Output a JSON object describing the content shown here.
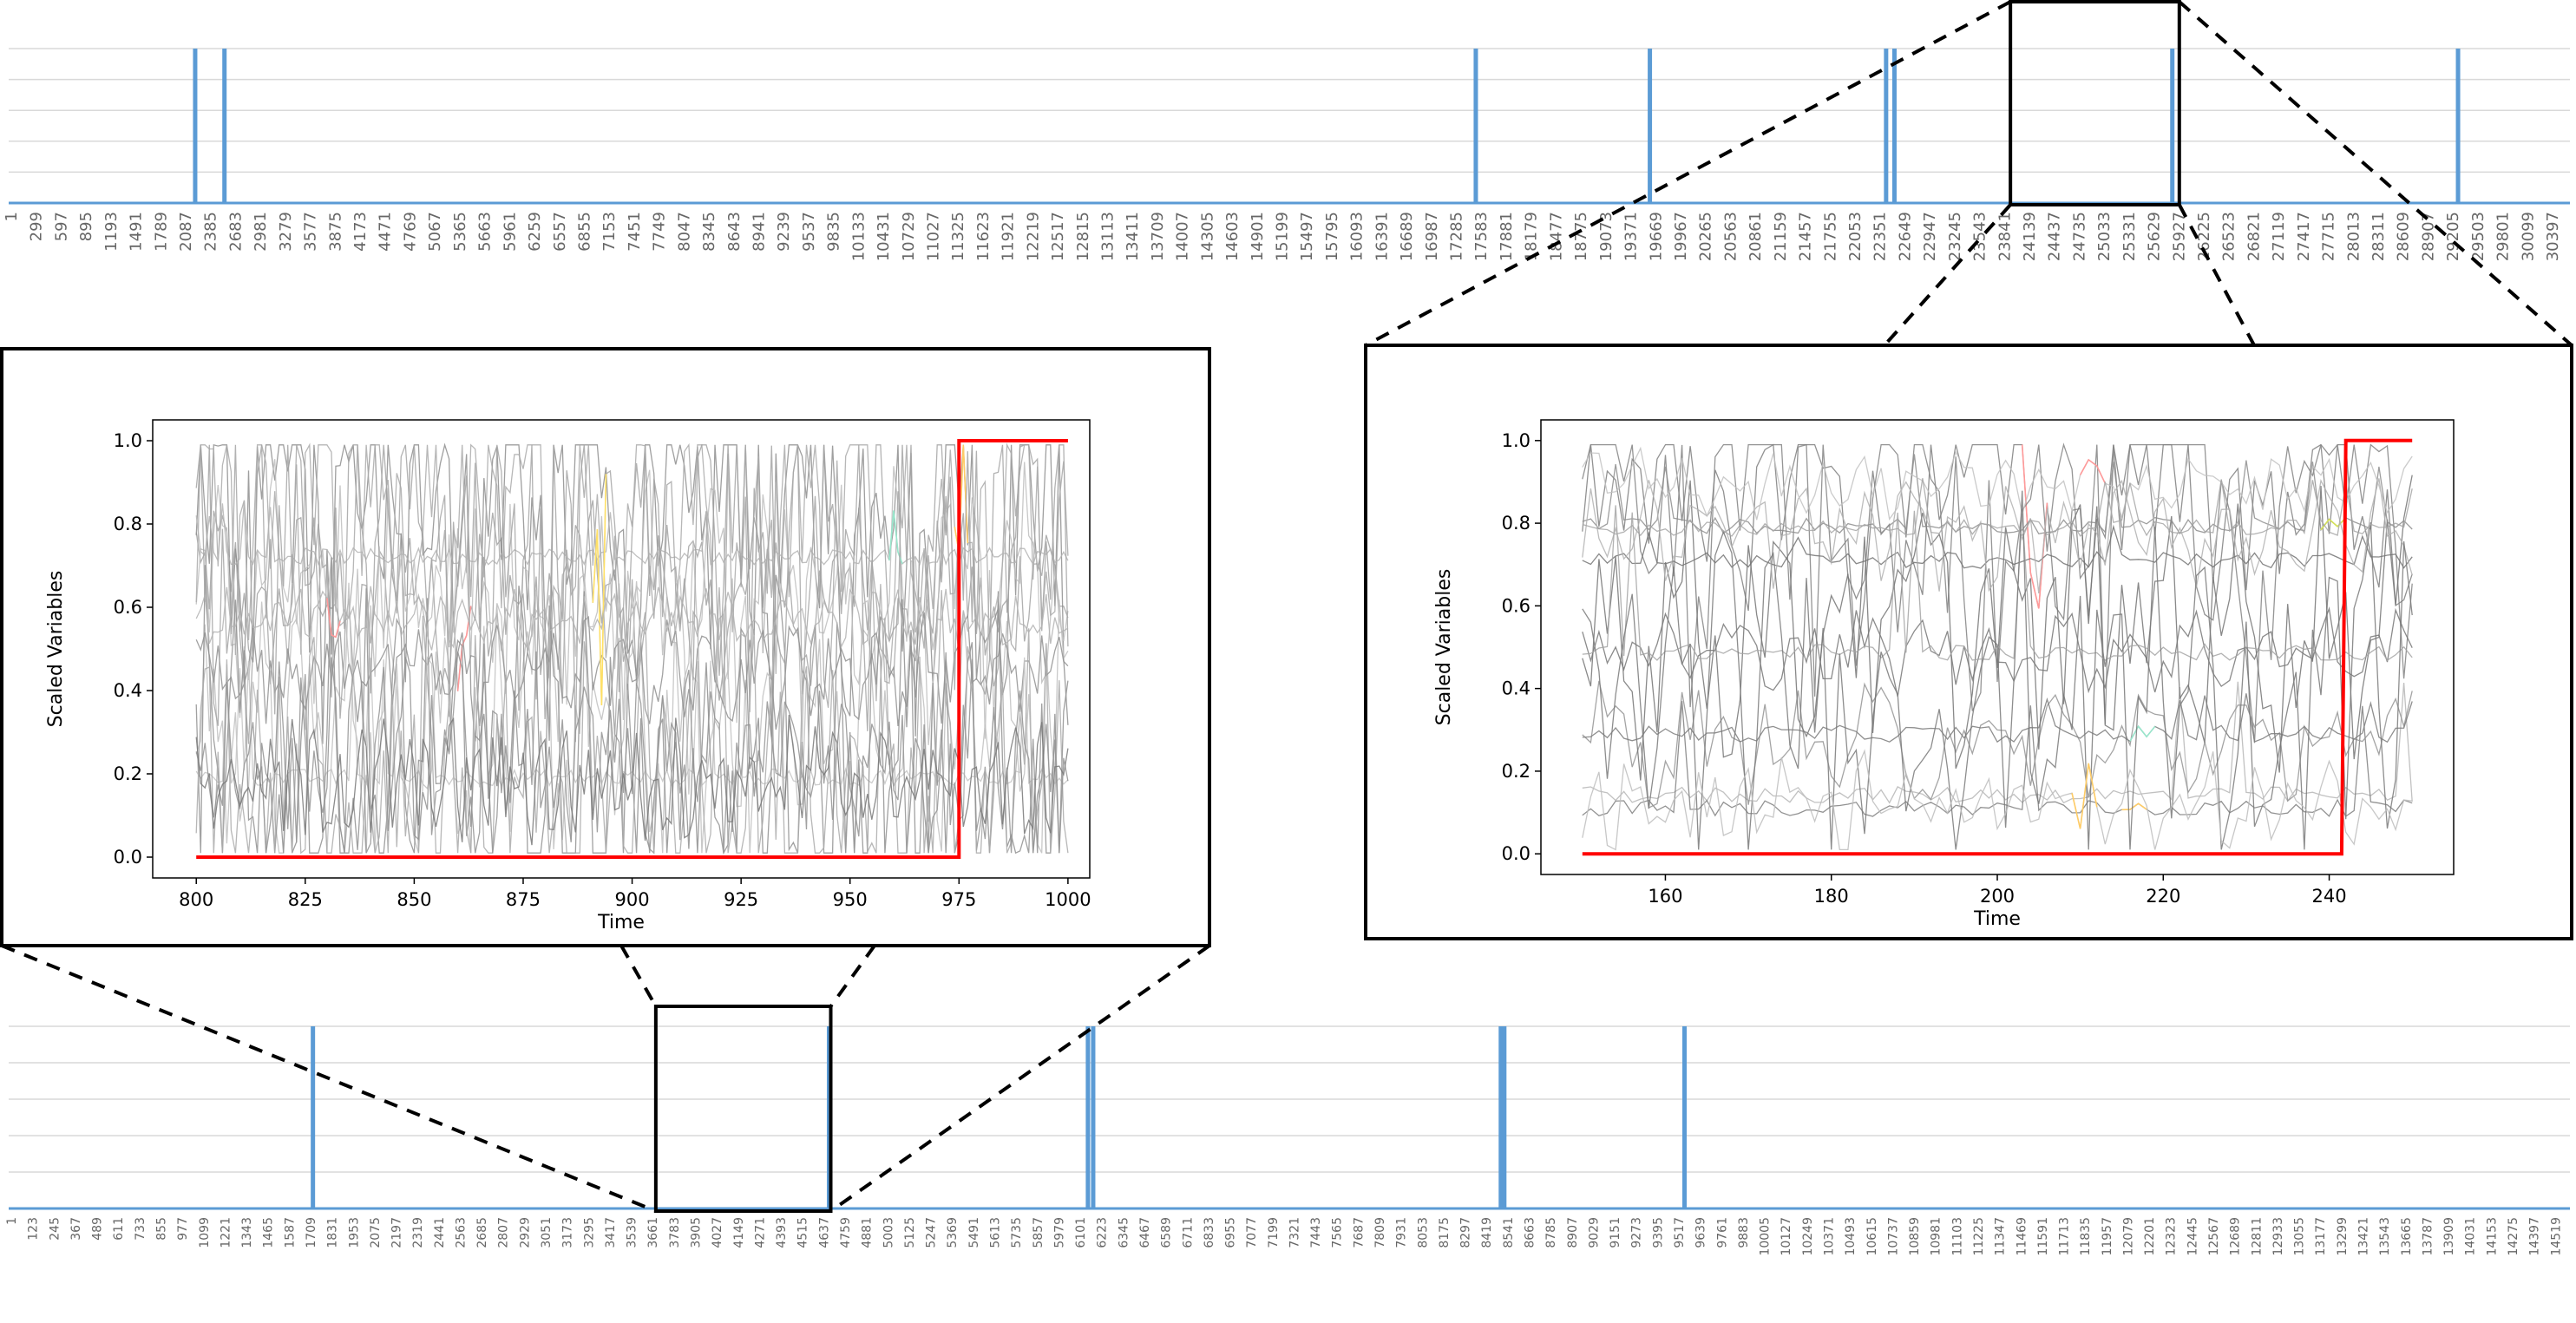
{
  "chart_data": [
    {
      "type": "line",
      "panel": "top-overview",
      "x_tick_labels": [
        "1",
        "299",
        "597",
        "895",
        "1193",
        "1491",
        "1789",
        "2087",
        "2385",
        "2683",
        "2981",
        "3279",
        "3577",
        "3875",
        "4173",
        "4471",
        "4769",
        "5067",
        "5365",
        "5663",
        "5961",
        "6259",
        "6557",
        "6855",
        "7153",
        "7451",
        "7749",
        "8047",
        "8345",
        "8643",
        "8941",
        "9239",
        "9537",
        "9835",
        "10133",
        "10431",
        "10729",
        "11027",
        "11325",
        "11623",
        "11921",
        "12219",
        "12517",
        "12815",
        "13113",
        "13411",
        "13709",
        "14007",
        "14305",
        "14603",
        "14901",
        "15199",
        "15497",
        "15795",
        "16093",
        "16391",
        "16689",
        "16987",
        "17285",
        "17583",
        "17881",
        "18179",
        "18477",
        "18775",
        "19073",
        "19371",
        "19669",
        "19967",
        "20265",
        "20563",
        "20861",
        "21159",
        "21457",
        "21755",
        "22053",
        "22351",
        "22649",
        "22947",
        "23245",
        "23543",
        "23841",
        "24139",
        "24437",
        "24735",
        "25033",
        "25331",
        "25629",
        "25927",
        "26225",
        "26523",
        "26821",
        "27119",
        "27417",
        "27715",
        "28013",
        "28311",
        "28609",
        "28907",
        "29205",
        "29503",
        "29801",
        "30099",
        "30397"
      ],
      "xlim": [
        1,
        30695
      ],
      "ylim": [
        0,
        1
      ],
      "grid": "horizontal",
      "spike_x": [
        2236,
        2587,
        17583,
        19669,
        22500,
        22600,
        25930,
        29354
      ],
      "zoom_box_x": [
        23990,
        26014
      ]
    },
    {
      "type": "line",
      "panel": "bottom-overview",
      "x_tick_labels": [
        "1",
        "123",
        "245",
        "367",
        "489",
        "611",
        "733",
        "855",
        "977",
        "1099",
        "1221",
        "1343",
        "1465",
        "1587",
        "1709",
        "1831",
        "1953",
        "2075",
        "2197",
        "2319",
        "2441",
        "2563",
        "2685",
        "2807",
        "2929",
        "3051",
        "3173",
        "3295",
        "3417",
        "3539",
        "3661",
        "3783",
        "3905",
        "4027",
        "4149",
        "4271",
        "4393",
        "4515",
        "4637",
        "4759",
        "4881",
        "5003",
        "5125",
        "5247",
        "5369",
        "5491",
        "5613",
        "5735",
        "5857",
        "5979",
        "6101",
        "6223",
        "6345",
        "6467",
        "6589",
        "6711",
        "6833",
        "6955",
        "7077",
        "7199",
        "7321",
        "7443",
        "7565",
        "7687",
        "7809",
        "7931",
        "8053",
        "8175",
        "8297",
        "8419",
        "8541",
        "8663",
        "8785",
        "8907",
        "9029",
        "9151",
        "9273",
        "9395",
        "9517",
        "9639",
        "9761",
        "9883",
        "10005",
        "10127",
        "10249",
        "10371",
        "10493",
        "10615",
        "10737",
        "10859",
        "10981",
        "11103",
        "11225",
        "11347",
        "11469",
        "11591",
        "11713",
        "11835",
        "11957",
        "12079",
        "12201",
        "12323",
        "12445",
        "12567",
        "12689",
        "12811",
        "12933",
        "13055",
        "13177",
        "13299",
        "13421",
        "13543",
        "13665",
        "13787",
        "13909",
        "14031",
        "14153",
        "14275",
        "14397",
        "14519"
      ],
      "xlim": [
        1,
        14641
      ],
      "ylim": [
        0,
        1
      ],
      "grid": "horizontal",
      "spike_x": [
        1740,
        4690,
        6170,
        6200,
        8530,
        8550,
        9580
      ],
      "zoom_box_x": [
        3700,
        4700
      ]
    },
    {
      "type": "line",
      "panel": "left-inset",
      "xlabel": "Time",
      "ylabel": "Scaled Variables",
      "xlim": [
        790,
        1005
      ],
      "ylim": [
        -0.05,
        1.05
      ],
      "x_ticks": [
        800,
        825,
        850,
        875,
        900,
        925,
        950,
        975,
        1000
      ],
      "y_ticks": [
        0.0,
        0.2,
        0.4,
        0.6,
        0.8,
        1.0
      ],
      "x_tick_labels": [
        "800",
        "825",
        "850",
        "875",
        "900",
        "925",
        "950",
        "975",
        "1000"
      ],
      "y_tick_labels": [
        "0.0",
        "0.2",
        "0.4",
        "0.6",
        "0.8",
        "1.0"
      ],
      "target_series": {
        "x": [
          800,
          975,
          975,
          1000
        ],
        "y": [
          0,
          0,
          1,
          1
        ]
      },
      "background_series_count": 14,
      "highlight_colors": [
        "#ff9999",
        "#ffe066",
        "#99e6cc",
        "#ffcc66"
      ]
    },
    {
      "type": "line",
      "panel": "right-inset",
      "xlabel": "Time",
      "ylabel": "Scaled Variables",
      "xlim": [
        145,
        255
      ],
      "ylim": [
        -0.05,
        1.05
      ],
      "x_ticks": [
        160,
        180,
        200,
        220,
        240
      ],
      "y_ticks": [
        0.0,
        0.2,
        0.4,
        0.6,
        0.8,
        1.0
      ],
      "x_tick_labels": [
        "160",
        "180",
        "200",
        "220",
        "240"
      ],
      "y_tick_labels": [
        "0.0",
        "0.2",
        "0.4",
        "0.6",
        "0.8",
        "1.0"
      ],
      "target_series": {
        "x": [
          150,
          241.5,
          242,
          250
        ],
        "y": [
          0,
          0,
          1,
          1
        ]
      },
      "background_series_count": 16,
      "highlight_colors": [
        "#ff9999",
        "#d4e157",
        "#99e6cc",
        "#ffcc66"
      ]
    }
  ],
  "colors": {
    "overview_line": "#5b9bd5",
    "grid": "#d9d9d9",
    "target": "#ff0000",
    "background": "#999999"
  }
}
